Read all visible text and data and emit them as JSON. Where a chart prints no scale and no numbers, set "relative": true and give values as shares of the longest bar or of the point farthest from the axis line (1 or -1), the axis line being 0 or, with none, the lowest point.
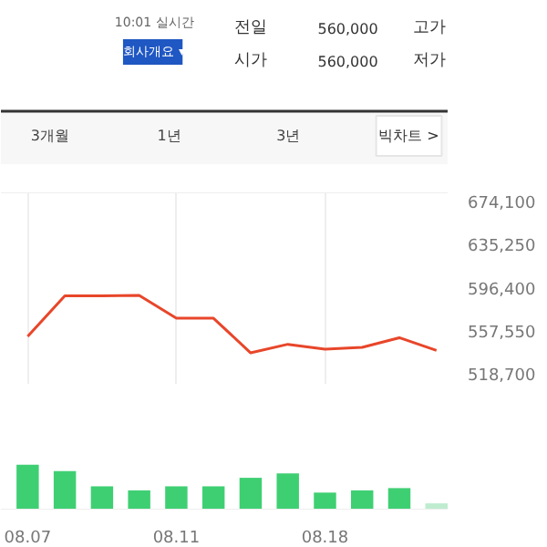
{
  "chart_data": [
    {
      "type": "line",
      "annotations": [
        "10:01 실시간",
        "회사개요 ▾",
        "전일",
        "560,000",
        "고가",
        "시가",
        "560,000",
        "저가",
        "3개월",
        "1년",
        "3년",
        "빅차트 >"
      ],
      "categories": [
        "08.07",
        null,
        null,
        null,
        "08.11",
        null,
        null,
        null,
        "08.18",
        null,
        null,
        null
      ],
      "series": [
        {
          "color": "#e8462a",
          "values": [
            552500,
            589000,
            589000,
            589500,
            568900,
            568900,
            537800,
            545500,
            541100,
            542700,
            551400,
            540000
          ]
        }
      ],
      "ylim": [
        510000,
        682000
      ],
      "yticks": [
        {
          "value": 518700,
          "label": "518,700"
        },
        {
          "value": 557550,
          "label": "557,550"
        },
        {
          "value": 596400,
          "label": "596,400"
        },
        {
          "value": 635250,
          "label": "635,250"
        },
        {
          "value": 674100,
          "label": "674,100"
        }
      ],
      "grid": "x",
      "tick_labels": "y",
      "marker": "none"
    },
    {
      "type": "bar",
      "categories": [
        "08.07",
        null,
        null,
        null,
        "08.11",
        null,
        null,
        null,
        "08.18",
        null,
        null,
        null
      ],
      "values": [
        1,
        0.86,
        0.52,
        0.43,
        0.52,
        0.52,
        0.71,
        0.81,
        0.38,
        0.43,
        0.48,
        0.14
      ],
      "colors": [
        "#3fcf73",
        "#3fcf73",
        "#3fcf73",
        "#3fcf73",
        "#3fcf73",
        "#3fcf73",
        "#3fcf73",
        "#3fcf73",
        "#3fcf73",
        "#3fcf73",
        "#3fcf73",
        "#bfeccf"
      ],
      "relative": true,
      "tick_labels": "x"
    }
  ]
}
